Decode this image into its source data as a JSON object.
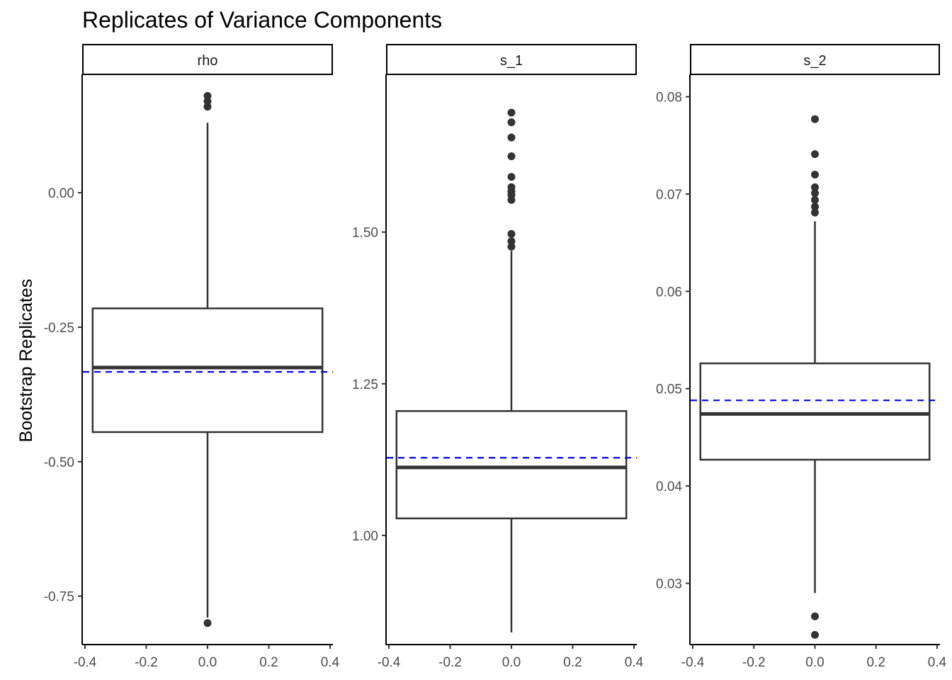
{
  "chart_data": {
    "type": "boxplot",
    "title": "Replicates of Variance Components",
    "ylabel": "Bootstrap Replicates",
    "xlabel": "",
    "x_ticks": [
      "-0.4",
      "-0.2",
      "0.0",
      "0.2",
      "0.4"
    ],
    "x_range": [
      -0.4,
      0.4
    ],
    "facet_scales": "free_y",
    "grid": false,
    "reference_line": {
      "style": "dashed",
      "color": "#0000FF"
    },
    "box_x_extent": [
      -0.375,
      0.375
    ],
    "panels": [
      {
        "label": "rho",
        "y_range": [
          -0.84,
          0.22
        ],
        "y_ticks": [
          {
            "value": 0.0,
            "label": "0.00"
          },
          {
            "value": -0.25,
            "label": "-0.25"
          },
          {
            "value": -0.5,
            "label": "-0.50"
          },
          {
            "value": -0.75,
            "label": "-0.75"
          }
        ],
        "box": {
          "lower_whisker": -0.79,
          "q1": -0.445,
          "median": -0.325,
          "q3": -0.215,
          "upper_whisker": 0.13
        },
        "outliers": [
          -0.8,
          0.16,
          0.17,
          0.18
        ],
        "reference_value": -0.333
      },
      {
        "label": "s_1",
        "y_range": [
          0.82,
          1.76
        ],
        "y_ticks": [
          {
            "value": 1.0,
            "label": "1.00"
          },
          {
            "value": 1.25,
            "label": "1.25"
          },
          {
            "value": 1.5,
            "label": "1.50"
          }
        ],
        "box": {
          "lower_whisker": 0.84,
          "q1": 1.028,
          "median": 1.112,
          "q3": 1.205,
          "upper_whisker": 1.469
        },
        "outliers": [
          1.476,
          1.485,
          1.497,
          1.553,
          1.561,
          1.567,
          1.574,
          1.591,
          1.625,
          1.656,
          1.681,
          1.697
        ],
        "reference_value": 1.128
      },
      {
        "label": "s_2",
        "y_range": [
          0.0237,
          0.0823
        ],
        "y_ticks": [
          {
            "value": 0.03,
            "label": "0.03"
          },
          {
            "value": 0.04,
            "label": "0.04"
          },
          {
            "value": 0.05,
            "label": "0.05"
          },
          {
            "value": 0.06,
            "label": "0.06"
          },
          {
            "value": 0.07,
            "label": "0.07"
          },
          {
            "value": 0.08,
            "label": "0.08"
          }
        ],
        "box": {
          "lower_whisker": 0.029,
          "q1": 0.0427,
          "median": 0.0474,
          "q3": 0.0526,
          "upper_whisker": 0.0672
        },
        "outliers": [
          0.0247,
          0.0266,
          0.0681,
          0.0687,
          0.0694,
          0.0701,
          0.0707,
          0.072,
          0.0741,
          0.0777
        ],
        "reference_value": 0.0488
      }
    ]
  }
}
